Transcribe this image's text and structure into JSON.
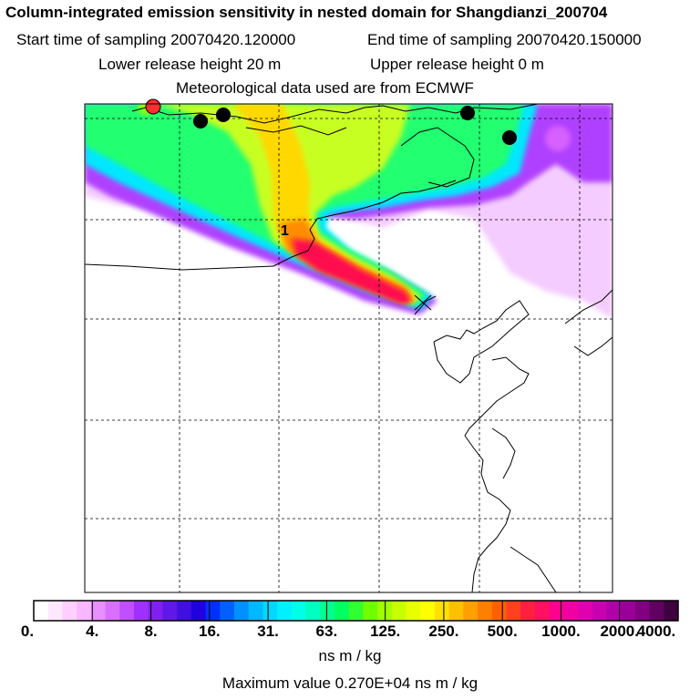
{
  "header": {
    "title": "Column-integrated emission sensitivity in nested domain for Shangdianzi_200704",
    "start_sampling": "Start time of sampling 20070420.120000",
    "end_sampling": "End time of sampling 20070420.150000",
    "lower_release": "Lower release height   20 m",
    "upper_release": "Upper release height    0 m",
    "met_data": "Meteorological data used are from ECMWF"
  },
  "map": {
    "marker_label": "1",
    "plume_colors": [
      "#ff00ff",
      "#9000ff",
      "#00e0ff",
      "#00ff90",
      "#ccff00",
      "#ffd000",
      "#ff1050"
    ]
  },
  "colorbar": {
    "tick_labels": [
      "0.",
      "4.",
      "8.",
      "16.",
      "31.",
      "63.",
      "125.",
      "250.",
      "500.",
      "1000.",
      "2000.",
      "4000."
    ],
    "colors": [
      "#ffffff",
      "#ffe8ff",
      "#ffd0ff",
      "#f8b8ff",
      "#e890ff",
      "#d870ff",
      "#c050ff",
      "#a030ff",
      "#8020f0",
      "#6018e8",
      "#4010e0",
      "#2000e0",
      "#0030ff",
      "#0060ff",
      "#0090ff",
      "#00b8ff",
      "#00d8ff",
      "#00f0ff",
      "#00ffe8",
      "#00ffc0",
      "#00ff90",
      "#00ff60",
      "#30ff30",
      "#70ff00",
      "#a0ff00",
      "#c8ff00",
      "#e8ff00",
      "#ffff00",
      "#ffe000",
      "#ffc000",
      "#ffa000",
      "#ff8000",
      "#ff6000",
      "#ff4020",
      "#ff2040",
      "#ff1060",
      "#ff0090",
      "#f000a0",
      "#e000b0",
      "#c800b0",
      "#b000a8",
      "#980098",
      "#800080",
      "#600060",
      "#400040"
    ],
    "units": "ns m / kg",
    "maximum": "Maximum value  0.270E+04 ns m / kg"
  }
}
